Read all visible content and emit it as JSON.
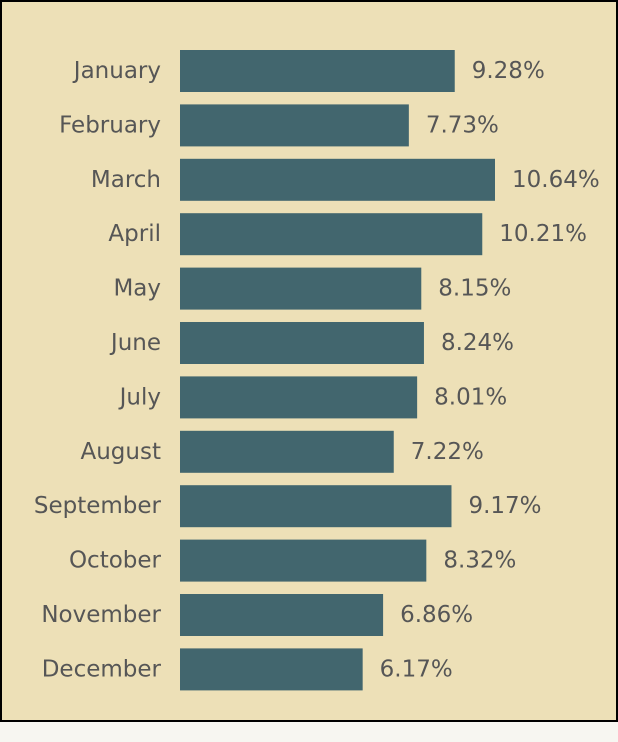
{
  "colors": {
    "background": "#ede0b7",
    "bar": "#42666e",
    "text": "#565656",
    "border": "#000000"
  },
  "chart_data": {
    "type": "bar",
    "orientation": "horizontal",
    "title": "",
    "xlabel": "",
    "ylabel": "",
    "grid": false,
    "legend": "none",
    "xlim": [
      0,
      10.64
    ],
    "categories": [
      "January",
      "February",
      "March",
      "April",
      "May",
      "June",
      "July",
      "August",
      "September",
      "October",
      "November",
      "December"
    ],
    "values": [
      9.28,
      7.73,
      10.64,
      10.21,
      8.15,
      8.24,
      8.01,
      7.22,
      9.17,
      8.32,
      6.86,
      6.17
    ],
    "value_labels": [
      "9.28%",
      "7.73%",
      "10.64%",
      "10.21%",
      "8.15%",
      "8.24%",
      "8.01%",
      "7.22%",
      "9.17%",
      "8.32%",
      "6.86%",
      "6.17%"
    ]
  }
}
